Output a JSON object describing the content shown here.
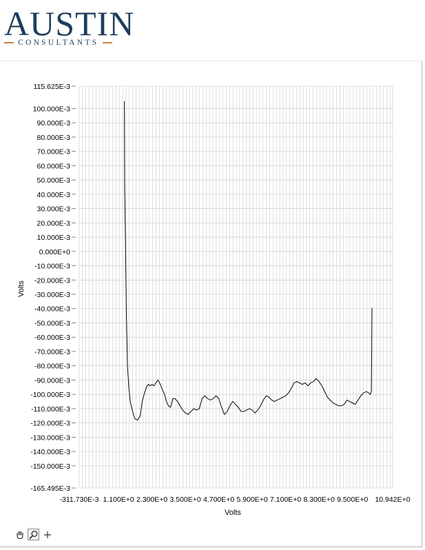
{
  "header": {
    "brand_name": "AUSTIN",
    "brand_sub": "CONSULTANTS"
  },
  "colors": {
    "brand_navy": "#1f3d5c",
    "brand_orange": "#d07f3a",
    "grid": "#c8c8c8",
    "trace": "#000000"
  },
  "toolbar": {
    "tools": [
      {
        "name": "pan",
        "icon": "hand-icon"
      },
      {
        "name": "zoom",
        "icon": "zoom-icon"
      },
      {
        "name": "cursor",
        "icon": "crosshair-icon"
      }
    ]
  },
  "chart_data": {
    "type": "line",
    "xlabel": "Volts",
    "ylabel": "Volts",
    "xlim": [
      -0.31173,
      10.942
    ],
    "ylim": [
      -0.165495,
      0.115625
    ],
    "grid": true,
    "x_tick_labels": [
      "-311.730E-3",
      "1.100E+0",
      "2.300E+0",
      "3.500E+0",
      "4.700E+0",
      "5.900E+0",
      "7.100E+0",
      "8.300E+0",
      "9.500E+0",
      "10.942E+0"
    ],
    "y_tick_labels": [
      "115.625E-3",
      "100.000E-3",
      "90.000E-3",
      "80.000E-3",
      "70.000E-3",
      "60.000E-3",
      "50.000E-3",
      "40.000E-3",
      "30.000E-3",
      "20.000E-3",
      "10.000E-3",
      "0.000E+0",
      "-10.000E-3",
      "-20.000E-3",
      "-30.000E-3",
      "-40.000E-3",
      "-50.000E-3",
      "-60.000E-3",
      "-70.000E-3",
      "-80.000E-3",
      "-90.000E-3",
      "-100.000E-3",
      "-110.000E-3",
      "-120.000E-3",
      "-130.000E-3",
      "-140.000E-3",
      "-150.000E-3",
      "-165.495E-3"
    ],
    "series": [
      {
        "x": [
          1.31,
          1.32,
          1.34,
          1.38,
          1.42,
          1.47,
          1.52,
          1.58,
          1.68,
          1.78,
          1.88,
          1.95,
          2.02,
          2.1,
          2.17,
          2.24,
          2.3,
          2.37,
          2.44,
          2.52,
          2.6,
          2.68,
          2.75,
          2.82,
          2.89,
          2.97,
          3.05,
          3.13,
          3.22,
          3.31,
          3.4,
          3.5,
          3.6,
          3.7,
          3.8,
          3.9,
          4.0,
          4.1,
          4.2,
          4.3,
          4.4,
          4.5,
          4.6,
          4.7,
          4.8,
          4.9,
          5.0,
          5.1,
          5.2,
          5.3,
          5.4,
          5.5,
          5.6,
          5.7,
          5.8,
          5.9,
          6.0,
          6.1,
          6.2,
          6.3,
          6.4,
          6.5,
          6.6,
          6.7,
          6.8,
          6.9,
          7.0,
          7.1,
          7.2,
          7.3,
          7.4,
          7.5,
          7.6,
          7.7,
          7.8,
          7.9,
          8.0,
          8.1,
          8.2,
          8.3,
          8.4,
          8.5,
          8.6,
          8.7,
          8.8,
          8.9,
          9.0,
          9.1,
          9.2,
          9.3,
          9.4,
          9.5,
          9.6,
          9.7,
          9.8,
          9.9,
          10.0,
          10.08,
          10.14,
          10.18,
          10.2,
          10.22
        ],
        "y": [
          0.105,
          0.045,
          0.02,
          -0.04,
          -0.08,
          -0.095,
          -0.105,
          -0.11,
          -0.117,
          -0.118,
          -0.115,
          -0.105,
          -0.1,
          -0.095,
          -0.093,
          -0.094,
          -0.093,
          -0.094,
          -0.092,
          -0.09,
          -0.093,
          -0.097,
          -0.1,
          -0.105,
          -0.108,
          -0.109,
          -0.103,
          -0.103,
          -0.105,
          -0.108,
          -0.111,
          -0.113,
          -0.114,
          -0.112,
          -0.11,
          -0.111,
          -0.11,
          -0.103,
          -0.101,
          -0.103,
          -0.104,
          -0.103,
          -0.101,
          -0.103,
          -0.109,
          -0.114,
          -0.112,
          -0.108,
          -0.105,
          -0.107,
          -0.109,
          -0.112,
          -0.112,
          -0.111,
          -0.11,
          -0.111,
          -0.113,
          -0.111,
          -0.108,
          -0.104,
          -0.101,
          -0.102,
          -0.104,
          -0.105,
          -0.104,
          -0.103,
          -0.102,
          -0.101,
          -0.099,
          -0.096,
          -0.092,
          -0.091,
          -0.092,
          -0.093,
          -0.092,
          -0.094,
          -0.092,
          -0.091,
          -0.089,
          -0.091,
          -0.094,
          -0.098,
          -0.102,
          -0.104,
          -0.106,
          -0.107,
          -0.108,
          -0.108,
          -0.107,
          -0.104,
          -0.105,
          -0.106,
          -0.107,
          -0.104,
          -0.101,
          -0.099,
          -0.098,
          -0.099,
          -0.1,
          -0.098,
          -0.04,
          -0.04
        ]
      }
    ]
  }
}
